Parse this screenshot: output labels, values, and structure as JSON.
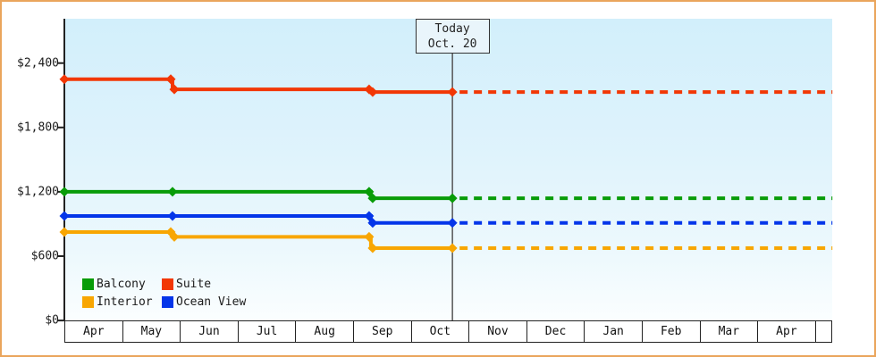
{
  "colors": {
    "frame_border": "#eaa55c",
    "plot_bg_top": "#d2effb",
    "plot_bg_bottom": "#fbfeff",
    "axis": "#222222",
    "today_line": "#555555",
    "today_box_bg": "#e9f5fb"
  },
  "chart_data": {
    "type": "line",
    "subtype": "step-price-history-with-forecast",
    "title": "",
    "x_unit": "months_from_Apr",
    "x_axis": {
      "categories": [
        "Apr",
        "May",
        "Jun",
        "Jul",
        "Aug",
        "Sep",
        "Oct",
        "Nov",
        "Dec",
        "Jan",
        "Feb",
        "Mar",
        "Apr"
      ]
    },
    "y_axis": {
      "tick_values": [
        0,
        600,
        1200,
        1800,
        2400
      ],
      "tick_labels": [
        "$0",
        "$600",
        "$1,200",
        "$1,800",
        "$2,400"
      ],
      "range": [
        0,
        2815
      ]
    },
    "today": {
      "label_line1": "Today",
      "label_line2": "Oct. 20",
      "month_index": 6.71
    },
    "dashed_end_month_index": 13.28,
    "series": [
      {
        "name": "Balcony",
        "color": "#089c08",
        "points": [
          {
            "m": 0,
            "v": 1200
          },
          {
            "m": 1.87,
            "v": 1200
          },
          {
            "m": 5.3,
            "v": 1200
          },
          {
            "m": 5.3,
            "v": 1140
          },
          {
            "m": 6.71,
            "v": 1140
          }
        ],
        "dashed_value": 1140
      },
      {
        "name": "Suite",
        "color": "#f23705",
        "points": [
          {
            "m": 0,
            "v": 2250
          },
          {
            "m": 1.87,
            "v": 2250
          },
          {
            "m": 1.87,
            "v": 2155
          },
          {
            "m": 5.3,
            "v": 2155
          },
          {
            "m": 5.3,
            "v": 2130
          },
          {
            "m": 6.71,
            "v": 2130
          }
        ],
        "dashed_value": 2130
      },
      {
        "name": "Interior",
        "color": "#f8a602",
        "points": [
          {
            "m": 0,
            "v": 825
          },
          {
            "m": 1.87,
            "v": 825
          },
          {
            "m": 1.87,
            "v": 780
          },
          {
            "m": 5.3,
            "v": 780
          },
          {
            "m": 5.3,
            "v": 675
          },
          {
            "m": 6.71,
            "v": 675
          }
        ],
        "dashed_value": 675
      },
      {
        "name": "Ocean View",
        "color": "#0435e9",
        "points": [
          {
            "m": 0,
            "v": 975
          },
          {
            "m": 1.87,
            "v": 975
          },
          {
            "m": 5.3,
            "v": 975
          },
          {
            "m": 5.3,
            "v": 910
          },
          {
            "m": 6.71,
            "v": 910
          }
        ],
        "dashed_value": 910
      }
    ],
    "legend": {
      "position": "bottom-left-inside-plot",
      "items": [
        "Balcony",
        "Suite",
        "Interior",
        "Ocean View"
      ]
    }
  }
}
